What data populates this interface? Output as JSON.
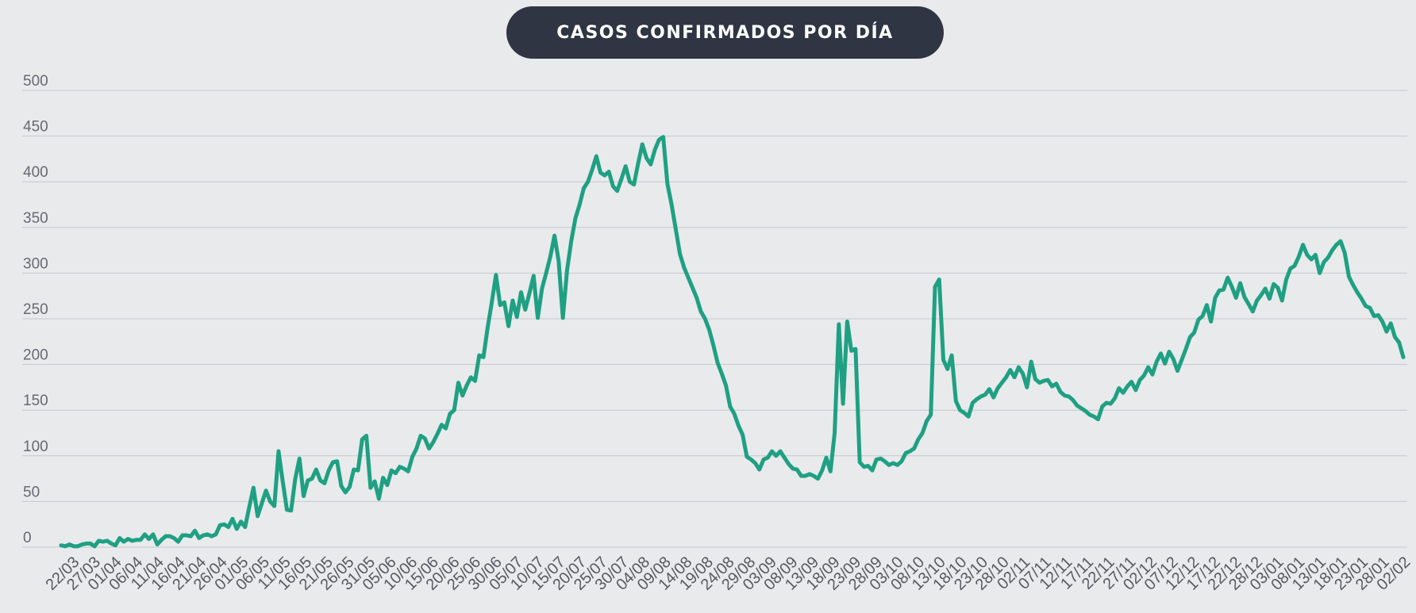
{
  "chart_data": {
    "type": "line",
    "title": "CASOS CONFIRMADOS POR DÍA",
    "xlabel": "",
    "ylabel": "",
    "ylim": [
      0,
      500
    ],
    "y_ticks": [
      0,
      50,
      100,
      150,
      200,
      250,
      300,
      350,
      400,
      450,
      500
    ],
    "x_tick_labels": [
      "22/03",
      "27/03",
      "01/04",
      "06/04",
      "11/04",
      "16/04",
      "21/04",
      "26/04",
      "01/05",
      "06/05",
      "11/05",
      "16/05",
      "21/05",
      "26/05",
      "31/05",
      "05/06",
      "10/06",
      "15/06",
      "20/06",
      "25/06",
      "30/06",
      "05/07",
      "10/07",
      "15/07",
      "20/07",
      "25/07",
      "30/07",
      "04/08",
      "09/08",
      "14/08",
      "19/08",
      "24/08",
      "29/08",
      "03/09",
      "08/09",
      "13/09",
      "18/09",
      "23/09",
      "28/09",
      "03/10",
      "08/10",
      "13/10",
      "18/10",
      "23/10",
      "28/10",
      "02/11",
      "07/11",
      "12/11",
      "17/11",
      "22/11",
      "27/11",
      "02/12",
      "07/12",
      "12/12",
      "17/12",
      "22/12",
      "28/12",
      "03/01",
      "08/01",
      "13/01",
      "18/01",
      "23/01",
      "28/01",
      "02/02"
    ],
    "grid": true,
    "line_color": "#1fa083",
    "series": [
      {
        "values": [
          2,
          1,
          3,
          1,
          1,
          3,
          4,
          4,
          1,
          7,
          6,
          7,
          4,
          2,
          10,
          6,
          9,
          7,
          8,
          8,
          14,
          9,
          14,
          3,
          8,
          12,
          12,
          10,
          6,
          13,
          13,
          12,
          18,
          10,
          13,
          14,
          12,
          14,
          24,
          25,
          22,
          31,
          20,
          28,
          22,
          44,
          65,
          34,
          48,
          62,
          50,
          45,
          105,
          72,
          41,
          40,
          75,
          97,
          56,
          73,
          75,
          85,
          73,
          70,
          84,
          93,
          94,
          67,
          60,
          66,
          85,
          84,
          118,
          122,
          65,
          72,
          53,
          76,
          68,
          84,
          81,
          88,
          86,
          83,
          99,
          108,
          122,
          119,
          108,
          115,
          124,
          134,
          130,
          146,
          150,
          180,
          166,
          177,
          186,
          182,
          210,
          208,
          240,
          268,
          298,
          265,
          268,
          242,
          270,
          252,
          279,
          260,
          278,
          297,
          251,
          283,
          300,
          318,
          341,
          313,
          251,
          303,
          335,
          360,
          375,
          393,
          400,
          413,
          428,
          410,
          407,
          411,
          395,
          390,
          403,
          417,
          400,
          397,
          420,
          441,
          426,
          419,
          435,
          446,
          449,
          398,
          375,
          348,
          321,
          306,
          295,
          284,
          273,
          258,
          250,
          238,
          221,
          202,
          190,
          177,
          154,
          146,
          133,
          123,
          99,
          96,
          92,
          85,
          96,
          98,
          105,
          100,
          105,
          98,
          91,
          86,
          85,
          78,
          78,
          80,
          78,
          75,
          84,
          98,
          83,
          125,
          244,
          157,
          247,
          215,
          217,
          93,
          88,
          89,
          84,
          96,
          97,
          94,
          90,
          92,
          90,
          94,
          103,
          105,
          108,
          118,
          125,
          138,
          145,
          285,
          293,
          205,
          195,
          210,
          160,
          150,
          147,
          143,
          158,
          162,
          165,
          167,
          173,
          164,
          174,
          180,
          186,
          194,
          186,
          197,
          190,
          175,
          203,
          184,
          180,
          182,
          183,
          176,
          179,
          170,
          166,
          165,
          161,
          155,
          152,
          149,
          145,
          143,
          140,
          154,
          158,
          157,
          163,
          174,
          169,
          176,
          181,
          172,
          183,
          188,
          197,
          189,
          203,
          212,
          201,
          214,
          206,
          193,
          205,
          217,
          230,
          235,
          249,
          253,
          265,
          247,
          273,
          281,
          282,
          295,
          285,
          273,
          289,
          274,
          266,
          258,
          270,
          276,
          283,
          272,
          288,
          284,
          270,
          293,
          305,
          308,
          318,
          331,
          320,
          315,
          320,
          300,
          312,
          317,
          325,
          331,
          335,
          322,
          296,
          287,
          279,
          272,
          264,
          262,
          253,
          254,
          247,
          236,
          245,
          230,
          224,
          208
        ]
      }
    ]
  }
}
